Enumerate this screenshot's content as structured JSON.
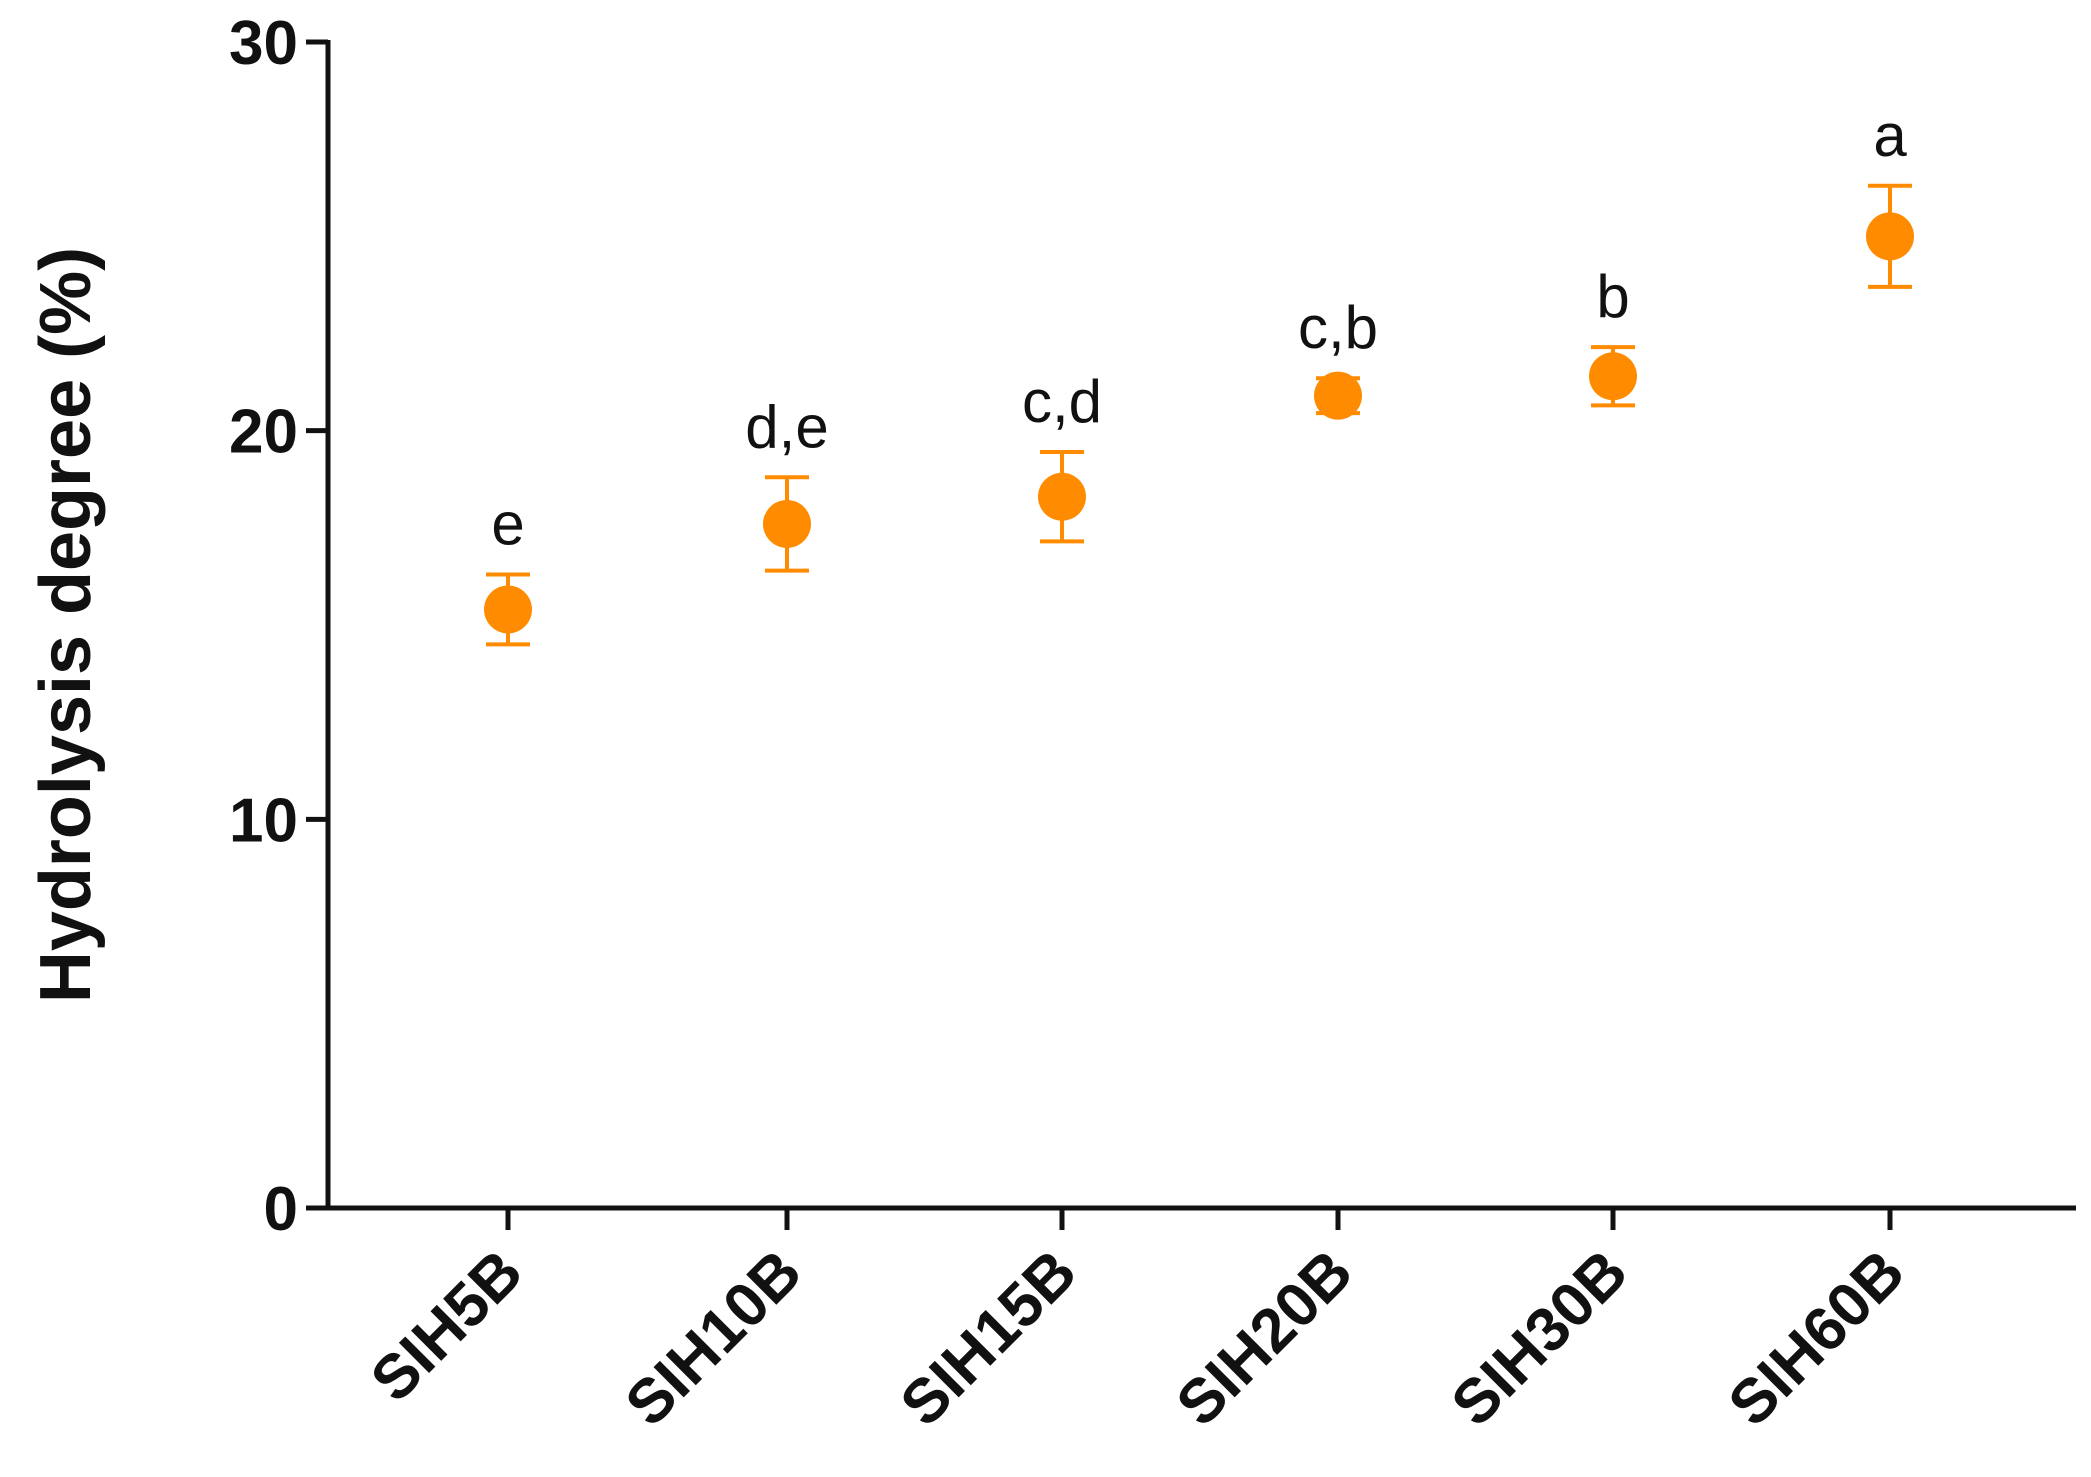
{
  "chart_data": {
    "type": "scatter",
    "title": "",
    "xlabel": "",
    "ylabel": "Hydrolysis degree (%)",
    "ylim": [
      0,
      30
    ],
    "yticks": [
      "0",
      "10",
      "20",
      "30"
    ],
    "categories": [
      "SIH5B",
      "SIH10B",
      "SIH15B",
      "SIH20B",
      "SIH30B",
      "SIH60B"
    ],
    "values": [
      15.4,
      17.6,
      18.3,
      20.9,
      21.4,
      25.0
    ],
    "errors": [
      0.9,
      1.2,
      1.15,
      0.45,
      0.75,
      1.3
    ],
    "annotations": [
      "e",
      "d,e",
      "c,d",
      "c,b",
      "b",
      "a"
    ],
    "grid": false,
    "legend": "none",
    "marker_color": "#ff8c00"
  }
}
